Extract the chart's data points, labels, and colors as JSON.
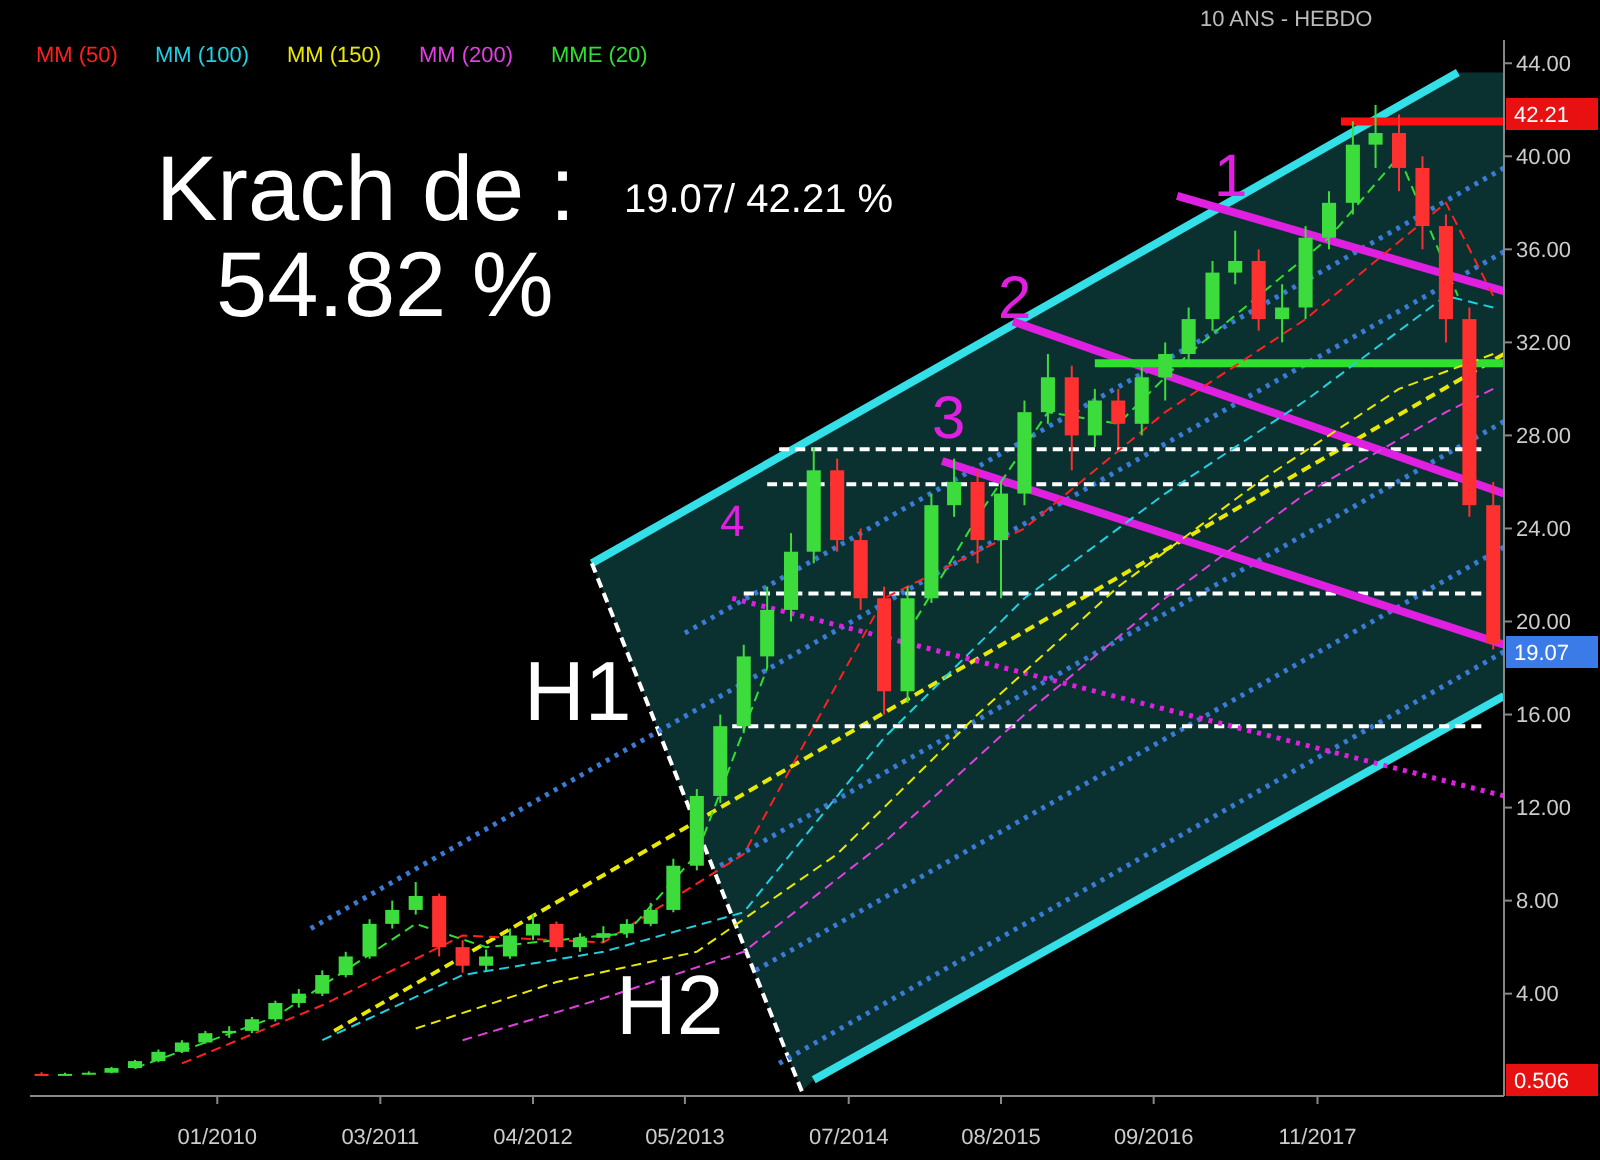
{
  "chart_data": {
    "type": "candlestick",
    "subtitle": "10 ANS - HEBDO",
    "x": [
      "2008-10",
      "2008-12",
      "2009-02",
      "2009-04",
      "2009-06",
      "2009-08",
      "2009-10",
      "2009-12",
      "2010-02",
      "2010-04",
      "2010-06",
      "2010-08",
      "2010-10",
      "2010-12",
      "2011-02",
      "2011-04",
      "2011-06",
      "2011-08",
      "2011-10",
      "2011-12",
      "2012-02",
      "2012-04",
      "2012-06",
      "2012-08",
      "2012-10",
      "2012-12",
      "2013-02",
      "2013-04",
      "2013-06",
      "2013-08",
      "2013-10",
      "2013-12",
      "2014-02",
      "2014-04",
      "2014-06",
      "2014-08",
      "2014-10",
      "2014-12",
      "2015-02",
      "2015-04",
      "2015-06",
      "2015-08",
      "2015-10",
      "2015-12",
      "2016-02",
      "2016-04",
      "2016-06",
      "2016-08",
      "2016-10",
      "2016-12",
      "2017-02",
      "2017-04",
      "2017-06",
      "2017-08",
      "2017-10",
      "2017-12",
      "2018-02",
      "2018-04",
      "2018-06",
      "2018-08",
      "2018-10",
      "2018-12",
      "2019-02"
    ],
    "ohlc": [
      [
        0.55,
        0.62,
        0.506,
        0.52
      ],
      [
        0.52,
        0.6,
        0.51,
        0.55
      ],
      [
        0.55,
        0.66,
        0.52,
        0.6
      ],
      [
        0.6,
        0.85,
        0.58,
        0.8
      ],
      [
        0.8,
        1.15,
        0.78,
        1.1
      ],
      [
        1.1,
        1.6,
        1.05,
        1.5
      ],
      [
        1.5,
        2.0,
        1.45,
        1.9
      ],
      [
        1.9,
        2.4,
        1.85,
        2.3
      ],
      [
        2.3,
        2.6,
        2.1,
        2.4
      ],
      [
        2.4,
        3.0,
        2.3,
        2.9
      ],
      [
        2.9,
        3.7,
        2.8,
        3.6
      ],
      [
        3.6,
        4.2,
        3.4,
        4.0
      ],
      [
        4.0,
        5.0,
        3.9,
        4.8
      ],
      [
        4.8,
        5.8,
        4.7,
        5.6
      ],
      [
        5.6,
        7.2,
        5.5,
        7.0
      ],
      [
        7.0,
        8.0,
        6.8,
        7.6
      ],
      [
        7.6,
        8.8,
        7.4,
        8.2
      ],
      [
        8.2,
        8.3,
        5.6,
        6.0
      ],
      [
        6.0,
        6.3,
        4.9,
        5.2
      ],
      [
        5.2,
        5.9,
        5.0,
        5.6
      ],
      [
        5.6,
        6.8,
        5.5,
        6.5
      ],
      [
        6.5,
        7.4,
        6.3,
        7.0
      ],
      [
        7.0,
        7.1,
        5.8,
        6.0
      ],
      [
        6.0,
        6.6,
        5.8,
        6.4
      ],
      [
        6.4,
        6.9,
        6.2,
        6.6
      ],
      [
        6.6,
        7.2,
        6.4,
        7.0
      ],
      [
        7.0,
        7.9,
        6.9,
        7.6
      ],
      [
        7.6,
        9.8,
        7.5,
        9.5
      ],
      [
        9.5,
        12.8,
        9.3,
        12.5
      ],
      [
        12.5,
        16.0,
        12.2,
        15.5
      ],
      [
        15.5,
        19.0,
        15.2,
        18.5
      ],
      [
        18.5,
        21.5,
        18.0,
        20.5
      ],
      [
        20.5,
        23.8,
        20.0,
        23.0
      ],
      [
        23.0,
        27.5,
        22.5,
        26.5
      ],
      [
        26.5,
        27.0,
        23.0,
        23.5
      ],
      [
        23.5,
        24.0,
        20.5,
        21.0
      ],
      [
        21.0,
        21.5,
        16.0,
        17.0
      ],
      [
        17.0,
        21.5,
        16.5,
        21.0
      ],
      [
        21.0,
        25.5,
        20.8,
        25.0
      ],
      [
        25.0,
        27.0,
        24.5,
        26.0
      ],
      [
        26.0,
        26.5,
        22.5,
        23.5
      ],
      [
        23.5,
        26.0,
        21.0,
        25.5
      ],
      [
        25.5,
        29.5,
        25.0,
        29.0
      ],
      [
        29.0,
        31.5,
        28.5,
        30.5
      ],
      [
        30.5,
        31.0,
        26.5,
        28.0
      ],
      [
        28.0,
        30.0,
        27.5,
        29.5
      ],
      [
        29.5,
        30.0,
        27.5,
        28.5
      ],
      [
        28.5,
        31.0,
        28.0,
        30.5
      ],
      [
        30.5,
        32.0,
        29.5,
        31.5
      ],
      [
        31.5,
        33.5,
        31.0,
        33.0
      ],
      [
        33.0,
        35.5,
        32.5,
        35.0
      ],
      [
        35.0,
        36.8,
        34.5,
        35.5
      ],
      [
        35.5,
        36.0,
        32.5,
        33.0
      ],
      [
        33.0,
        34.5,
        32.0,
        33.5
      ],
      [
        33.5,
        37.0,
        33.0,
        36.5
      ],
      [
        36.5,
        38.5,
        36.0,
        38.0
      ],
      [
        38.0,
        41.5,
        37.5,
        40.5
      ],
      [
        40.5,
        42.21,
        39.5,
        41.0
      ],
      [
        41.0,
        41.8,
        38.5,
        39.5
      ],
      [
        39.5,
        40.0,
        36.0,
        37.0
      ],
      [
        37.0,
        37.5,
        32.0,
        33.0
      ],
      [
        33.0,
        33.5,
        24.5,
        25.0
      ],
      [
        25.0,
        26.0,
        18.8,
        19.07
      ]
    ],
    "series": [
      {
        "type": "line",
        "color": "#33e0e8",
        "x": [
          "2012-09",
          "2018-11"
        ],
        "values": [
          22.5,
          43.6
        ]
      },
      {
        "type": "line",
        "color": "#33e0e8",
        "x": [
          "2014-04",
          "2019-03"
        ],
        "values": [
          0.3,
          16.8
        ]
      },
      {
        "type": "line",
        "color": "#ffffff",
        "line_style": "dashed",
        "x": [
          "2012-09",
          "2014-03"
        ],
        "values": [
          22.5,
          -0.2
        ]
      },
      {
        "type": "line",
        "color": "#3a7bd5",
        "line_style": "dotted",
        "x": [
          "2010-09",
          "2019-03"
        ],
        "values": [
          6.8,
          35.9
        ]
      },
      {
        "type": "line",
        "color": "#3a7bd5",
        "line_style": "dotted",
        "x": [
          "2013-05",
          "2019-03"
        ],
        "values": [
          19.5,
          39.5
        ]
      },
      {
        "type": "line",
        "color": "#3a7bd5",
        "line_style": "dotted",
        "x": [
          "2013-08",
          "2019-03"
        ],
        "values": [
          9.5,
          28.6
        ]
      },
      {
        "type": "line",
        "color": "#3a7bd5",
        "line_style": "dotted",
        "x": [
          "2013-11",
          "2019-03"
        ],
        "values": [
          5.0,
          23.2
        ]
      },
      {
        "type": "line",
        "color": "#3a7bd5",
        "line_style": "dotted",
        "x": [
          "2014-01",
          "2019-03"
        ],
        "values": [
          1.0,
          18.7
        ]
      },
      {
        "type": "line",
        "color": "#e8e800",
        "line_style": "dashed",
        "x": [
          "2010-11",
          "2019-03"
        ],
        "values": [
          2.4,
          31.5
        ]
      },
      {
        "type": "line",
        "color": "#ffffff",
        "line_style": "dashed",
        "x": [
          "2014-01",
          "2019-01"
        ],
        "values": [
          27.4,
          27.4
        ]
      },
      {
        "type": "line",
        "color": "#ffffff",
        "line_style": "dashed",
        "x": [
          "2013-12",
          "2018-11"
        ],
        "values": [
          25.9,
          25.9
        ]
      },
      {
        "type": "line",
        "color": "#ffffff",
        "line_style": "dashed",
        "x": [
          "2013-10",
          "2019-01"
        ],
        "values": [
          21.2,
          21.2
        ]
      },
      {
        "type": "line",
        "color": "#ffffff",
        "line_style": "dashed",
        "x": [
          "2013-09",
          "2019-01"
        ],
        "values": [
          15.5,
          15.5
        ]
      },
      {
        "type": "line",
        "color": "#e020e0",
        "line_style": "dotted",
        "x": [
          "2013-09",
          "2019-03"
        ],
        "values": [
          21.0,
          12.5
        ]
      },
      {
        "type": "line",
        "color": "#e020e0",
        "x": [
          "2016-11",
          "2019-03"
        ],
        "values": [
          38.3,
          34.2
        ]
      },
      {
        "type": "line",
        "color": "#e020e0",
        "x": [
          "2015-09",
          "2019-03"
        ],
        "values": [
          32.9,
          25.5
        ]
      },
      {
        "type": "line",
        "color": "#e020e0",
        "x": [
          "2015-03",
          "2019-03"
        ],
        "values": [
          26.9,
          19.0
        ]
      },
      {
        "type": "line",
        "color": "#30e030",
        "x": [
          "2016-04",
          "2019-03"
        ],
        "values": [
          31.1,
          31.1
        ]
      },
      {
        "type": "line",
        "color": "#ff1010",
        "x": [
          "2018-01",
          "2019-03"
        ],
        "values": [
          41.5,
          41.5
        ]
      },
      {
        "type": "line",
        "name": "MM (50)",
        "color": "#ff2020",
        "line_style": "dashed",
        "x": [
          "2009-10",
          "2010-10",
          "2011-10",
          "2012-10",
          "2013-10",
          "2014-10",
          "2015-10",
          "2016-10",
          "2017-10",
          "2018-10",
          "2019-02"
        ],
        "values": [
          1.0,
          3.5,
          6.5,
          6.2,
          10,
          21,
          24,
          29,
          33,
          38,
          34
        ]
      },
      {
        "type": "line",
        "name": "MM (100)",
        "color": "#20d0e0",
        "line_style": "dashed",
        "x": [
          "2010-10",
          "2011-10",
          "2012-10",
          "2013-10",
          "2014-10",
          "2015-10",
          "2016-10",
          "2017-10",
          "2018-10",
          "2019-02"
        ],
        "values": [
          2.0,
          4.8,
          5.8,
          7.5,
          15,
          21,
          25.5,
          29.5,
          34,
          33.5
        ]
      },
      {
        "type": "line",
        "name": "MM (150)",
        "color": "#e8e800",
        "line_style": "dashed",
        "x": [
          "2011-06",
          "2012-06",
          "2013-06",
          "2014-06",
          "2015-06",
          "2016-06",
          "2017-06",
          "2018-06",
          "2019-02"
        ],
        "values": [
          2.5,
          4.5,
          5.8,
          10,
          16,
          21.5,
          26,
          30,
          31.5
        ]
      },
      {
        "type": "line",
        "name": "MM (200)",
        "color": "#e040e0",
        "line_style": "dashed",
        "x": [
          "2011-10",
          "2012-10",
          "2013-10",
          "2014-10",
          "2015-10",
          "2016-10",
          "2017-10",
          "2018-10",
          "2019-02"
        ],
        "values": [
          2.0,
          3.8,
          5.8,
          10.5,
          16,
          21,
          25.5,
          29,
          30
        ]
      },
      {
        "type": "line",
        "name": "MME (20)",
        "color": "#30e030",
        "line_style": "dashed",
        "x": [
          "2009-06",
          "2010-06",
          "2011-06",
          "2011-12",
          "2012-12",
          "2013-06",
          "2013-12",
          "2014-06",
          "2014-12",
          "2015-06",
          "2015-12",
          "2016-06",
          "2016-12",
          "2017-06",
          "2017-12",
          "2018-06",
          "2018-11"
        ],
        "values": [
          0.8,
          3.0,
          7.0,
          6.0,
          6.6,
          10,
          18,
          null,
          19.5,
          24.5,
          29,
          28.5,
          31.5,
          34,
          36.5,
          40,
          34
        ]
      }
    ],
    "annotations": [
      "Krach de :",
      "19.07/ 42.21 %",
      "54.82  %",
      "1",
      "2",
      "3",
      "4",
      "H1",
      "H2",
      "42.21",
      "19.07",
      "0.506"
    ],
    "xlim": [
      "2008-09",
      "2019-03"
    ],
    "xticks": [
      {
        "value": "2010-01",
        "label": "01/2010"
      },
      {
        "value": "2011-03",
        "label": "03/2011"
      },
      {
        "value": "2012-04",
        "label": "04/2012"
      },
      {
        "value": "2013-05",
        "label": "05/2013"
      },
      {
        "value": "2014-07",
        "label": "07/2014"
      },
      {
        "value": "2015-08",
        "label": "08/2015"
      },
      {
        "value": "2016-09",
        "label": "09/2016"
      },
      {
        "value": "2017-11",
        "label": "11/2017"
      }
    ],
    "ylim": [
      -0.4,
      45
    ],
    "yticks": [
      {
        "value": 4,
        "label": "4.00"
      },
      {
        "value": 8,
        "label": "8.00"
      },
      {
        "value": 12,
        "label": "12.00"
      },
      {
        "value": 16,
        "label": "16.00"
      },
      {
        "value": 20,
        "label": "20.00"
      },
      {
        "value": 24,
        "label": "24.00"
      },
      {
        "value": 28,
        "label": "28.00"
      },
      {
        "value": 32,
        "label": "32.00"
      },
      {
        "value": 36,
        "label": "36.00"
      },
      {
        "value": 40,
        "label": "40.00"
      },
      {
        "value": 44,
        "label": "44.00"
      }
    ],
    "legend": "top left",
    "grid": false
  }
}
